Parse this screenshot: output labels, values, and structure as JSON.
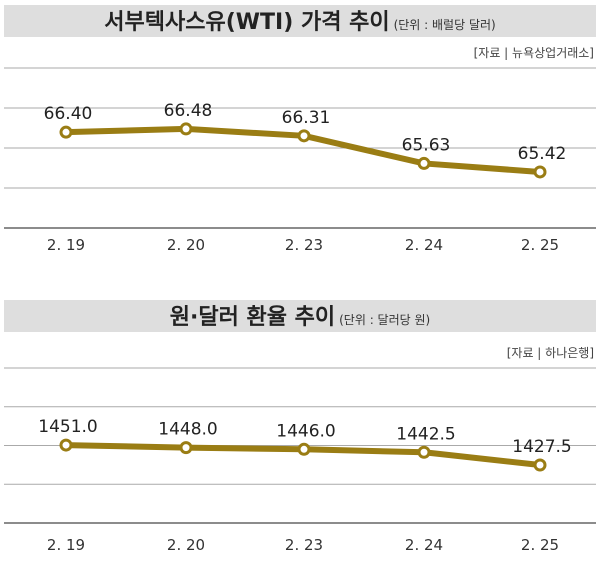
{
  "chart_data": [
    {
      "type": "line",
      "title": "서부텍사스유(WTI) 가격 추이",
      "unit": "(단위 : 배럴당 달러)",
      "source": "[자료 | 뉴욕상업거래소]",
      "categories": [
        "2. 19",
        "2. 20",
        "2. 23",
        "2. 24",
        "2. 25"
      ],
      "values": [
        66.4,
        66.48,
        66.31,
        65.63,
        65.42
      ],
      "labels": [
        "66.40",
        "66.48",
        "66.31",
        "65.63",
        "65.42"
      ],
      "ylim": [
        64.04,
        67.98
      ],
      "grid": true,
      "color": "#9a7d14"
    },
    {
      "type": "line",
      "title": "원·달러 환율 추이",
      "unit": "(단위 : 달러당 원)",
      "source": "[자료 | 하나은행]",
      "categories": [
        "2. 19",
        "2. 20",
        "2. 23",
        "2. 24",
        "2. 25"
      ],
      "values": [
        1451.0,
        1448.0,
        1446.0,
        1442.5,
        1427.5
      ],
      "labels": [
        "1451.0",
        "1448.0",
        "1446.0",
        "1442.5",
        "1427.5"
      ],
      "ylim": [
        1359,
        1542
      ],
      "grid": true,
      "color": "#9a7d14"
    }
  ]
}
